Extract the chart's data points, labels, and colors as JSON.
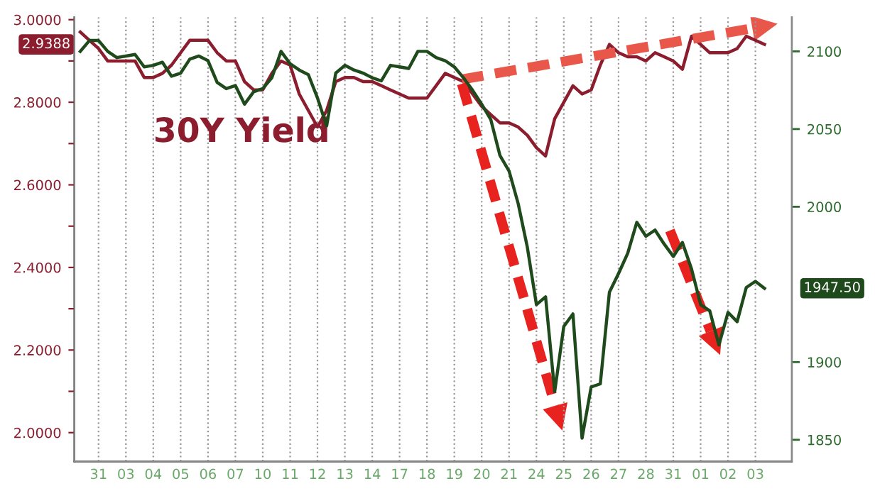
{
  "chart_data": {
    "type": "line",
    "categories": [
      null,
      null,
      "31",
      null,
      null,
      "03",
      null,
      null,
      "04",
      null,
      null,
      "05",
      null,
      null,
      "06",
      null,
      null,
      "07",
      null,
      null,
      "10",
      null,
      null,
      "11",
      null,
      null,
      "12",
      null,
      null,
      "13",
      null,
      null,
      "14",
      null,
      null,
      "17",
      null,
      null,
      "18",
      null,
      null,
      "19",
      null,
      null,
      "20",
      null,
      null,
      "21",
      null,
      null,
      "24",
      null,
      null,
      "25",
      null,
      null,
      "26",
      null,
      null,
      "27",
      null,
      null,
      "28",
      null,
      null,
      "31",
      null,
      null,
      "01",
      null,
      null,
      "02",
      null,
      null,
      "03",
      null
    ],
    "ylim": [
      1.93,
      3.006
    ],
    "yticks": [
      {
        "value": 2.0,
        "label": "2.0000"
      },
      {
        "value": 2.1,
        "label": null
      },
      {
        "value": 2.2,
        "label": "2.2000"
      },
      {
        "value": 2.3,
        "label": null
      },
      {
        "value": 2.4,
        "label": "2.4000"
      },
      {
        "value": 2.5,
        "label": null
      },
      {
        "value": 2.6,
        "label": "2.6000"
      },
      {
        "value": 2.7,
        "label": null
      },
      {
        "value": 2.8,
        "label": "2.8000"
      },
      {
        "value": 2.9,
        "label": null
      },
      {
        "value": 3.0,
        "label": "3.0000"
      }
    ],
    "y2lim": [
      1836,
      2122
    ],
    "y2ticks": [
      1850,
      1900,
      2000,
      2050,
      2100
    ],
    "grid": "x",
    "series": [
      {
        "name": "30Y Yield",
        "color": "#8c1d2e",
        "values": [
          2.97,
          2.95,
          2.93,
          2.9,
          2.9,
          2.9,
          2.9,
          2.86,
          2.86,
          2.87,
          2.89,
          2.92,
          2.95,
          2.95,
          2.95,
          2.92,
          2.9,
          2.9,
          2.85,
          2.83,
          2.83,
          2.87,
          2.9,
          2.89,
          2.82,
          2.78,
          2.74,
          2.78,
          2.85,
          2.86,
          2.86,
          2.85,
          2.85,
          2.84,
          2.83,
          2.82,
          2.81,
          2.81,
          2.81,
          2.84,
          2.87,
          2.86,
          2.85,
          2.82,
          2.79,
          2.77,
          2.75,
          2.75,
          2.74,
          2.72,
          2.69,
          2.67,
          2.76,
          2.8,
          2.84,
          2.82,
          2.83,
          2.89,
          2.94,
          2.92,
          2.91,
          2.91,
          2.9,
          2.92,
          2.91,
          2.9,
          2.88,
          2.96,
          2.94,
          2.92,
          2.92,
          2.92,
          2.93,
          2.96,
          2.95,
          2.94
        ]
      },
      {
        "axis": "y2",
        "color": "#1f4a1c",
        "values": [
          2100,
          2107,
          2107,
          2100,
          2096,
          2097,
          2098,
          2090,
          2091,
          2093,
          2084,
          2086,
          2095,
          2097,
          2094,
          2080,
          2076,
          2078,
          2066,
          2074,
          2076,
          2083,
          2100,
          2092,
          2088,
          2085,
          2070,
          2052,
          2086,
          2091,
          2088,
          2086,
          2083,
          2081,
          2091,
          2090,
          2089,
          2100,
          2100,
          2096,
          2094,
          2090,
          2083,
          2075,
          2066,
          2056,
          2033,
          2023,
          2002,
          1974,
          1937,
          1942,
          1881,
          1923,
          1931,
          1851,
          1884,
          1886,
          1945,
          1957,
          1970,
          1990,
          1981,
          1985,
          1976,
          1968,
          1977,
          1960,
          1937,
          1933,
          1911,
          1932,
          1926,
          1948,
          1952,
          1947.5
        ]
      }
    ],
    "annotations": [
      "2.9388",
      "1947.50"
    ]
  }
}
